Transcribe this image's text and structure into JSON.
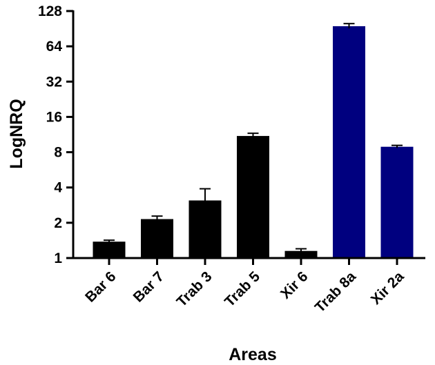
{
  "chart_data": {
    "type": "bar",
    "title": "",
    "xlabel": "Areas",
    "ylabel": "LogNRQ",
    "yscale": "log2",
    "ylim": [
      1,
      128
    ],
    "yticks": [
      "1",
      "2",
      "4",
      "8",
      "16",
      "32",
      "64",
      "128"
    ],
    "categories": [
      "Bar 6",
      "Bar 7",
      "Trab 3",
      "Trab 5",
      "Xir 6",
      "Trab 8a",
      "Xir 2a"
    ],
    "values": [
      1.38,
      2.15,
      3.1,
      11.0,
      1.15,
      95.0,
      8.9
    ],
    "error_upper": [
      1.42,
      2.28,
      3.9,
      11.6,
      1.2,
      100.0,
      9.15
    ],
    "error_lower": [
      1.34,
      2.05,
      2.6,
      10.6,
      1.1,
      91.0,
      8.7
    ],
    "colors": [
      "#000000",
      "#000000",
      "#000000",
      "#000000",
      "#000000",
      "#00007f",
      "#00007f"
    ],
    "grid": false,
    "legend": "none"
  }
}
